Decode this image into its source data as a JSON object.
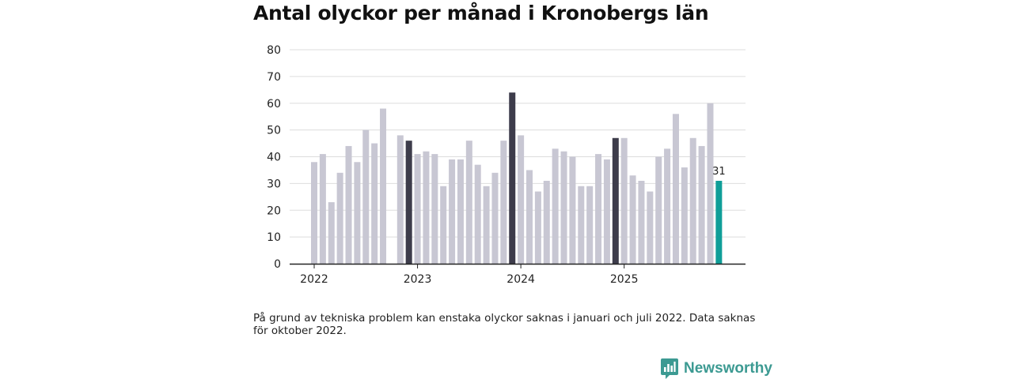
{
  "chart_data": {
    "type": "bar",
    "title": "Antal olyckor per månad i Kronobergs län",
    "xlabel": "",
    "ylabel": "",
    "ylim": [
      0,
      80
    ],
    "yticks": [
      0,
      10,
      20,
      30,
      40,
      50,
      60,
      70,
      80
    ],
    "grid": true,
    "year_labels": [
      {
        "label": "2022",
        "index": 0
      },
      {
        "label": "2023",
        "index": 12
      },
      {
        "label": "2024",
        "index": 24
      },
      {
        "label": "2025",
        "index": 36
      }
    ],
    "categories": [
      "2022-01",
      "2022-02",
      "2022-03",
      "2022-04",
      "2022-05",
      "2022-06",
      "2022-07",
      "2022-08",
      "2022-09",
      "2022-10",
      "2022-11",
      "2022-12",
      "2023-01",
      "2023-02",
      "2023-03",
      "2023-04",
      "2023-05",
      "2023-06",
      "2023-07",
      "2023-08",
      "2023-09",
      "2023-10",
      "2023-11",
      "2023-12",
      "2024-01",
      "2024-02",
      "2024-03",
      "2024-04",
      "2024-05",
      "2024-06",
      "2024-07",
      "2024-08",
      "2024-09",
      "2024-10",
      "2024-11",
      "2024-12",
      "2025-01",
      "2025-02",
      "2025-03",
      "2025-04",
      "2025-05",
      "2025-06",
      "2025-07",
      "2025-08",
      "2025-09",
      "2025-10",
      "2025-11",
      "2025-12"
    ],
    "values": [
      38,
      41,
      23,
      34,
      44,
      38,
      50,
      45,
      58,
      null,
      48,
      46,
      41,
      42,
      41,
      29,
      39,
      39,
      46,
      37,
      29,
      34,
      46,
      64,
      48,
      35,
      27,
      31,
      43,
      42,
      40,
      29,
      29,
      41,
      39,
      47,
      47,
      33,
      31,
      27,
      40,
      43,
      56,
      36,
      47,
      44,
      60,
      31
    ],
    "highlight_december_indices": [
      11,
      23,
      35
    ],
    "latest_index": 47,
    "latest_label": "31",
    "colors": {
      "default": "#c8c7d3",
      "december": "#3d3c4b",
      "latest": "#0f9e98",
      "grid": "#dddddd",
      "axis": "#222222"
    }
  },
  "footnote": "På grund av tekniska problem kan enstaka olyckor saknas i januari och juli 2022. Data saknas för oktober 2022.",
  "brand": {
    "name": "Newsworthy",
    "icon": "newsworthy-chart-icon",
    "color": "#3c9a92"
  }
}
